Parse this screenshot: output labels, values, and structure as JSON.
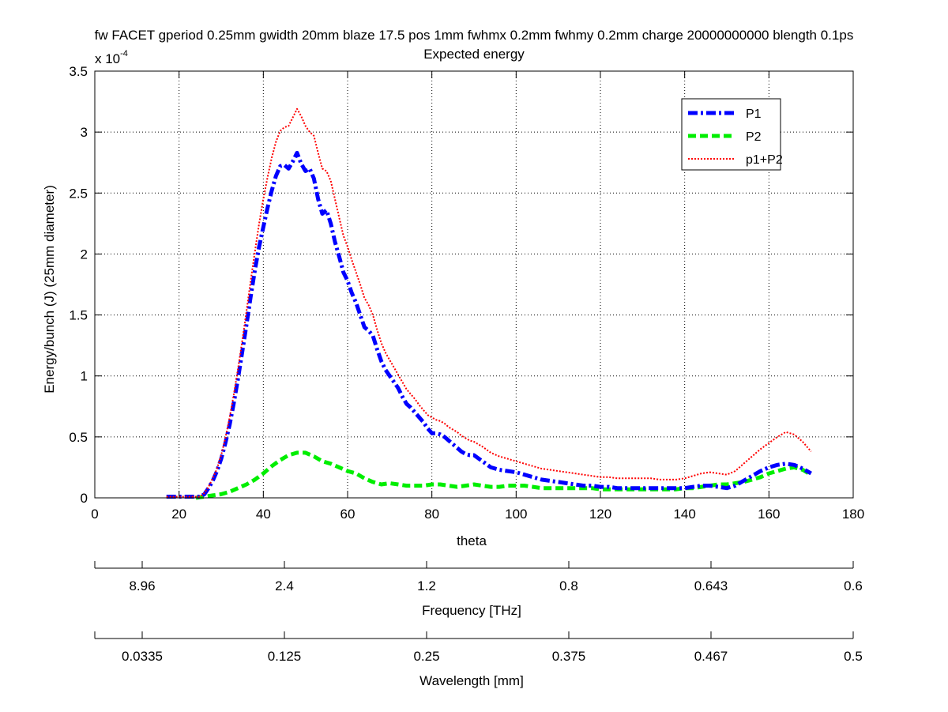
{
  "chart_data": {
    "type": "line",
    "title": "fw FACET gperiod 0.25mm gwidth 20mm blaze 17.5 pos 1mm fwhmx 0.2mm fwhmy 0.2mm charge 20000000000 blength 0.1ps",
    "subtitle": "Expected energy",
    "xlabel": "theta",
    "ylabel": "Energy/bunch (J)  (25mm diameter)",
    "y_exponent_base": "x 10",
    "y_exponent_power": "-4",
    "xlim": [
      0,
      180
    ],
    "ylim": [
      0,
      3.5
    ],
    "x_ticks": [
      0,
      20,
      40,
      60,
      80,
      100,
      120,
      140,
      160,
      180
    ],
    "y_ticks": [
      0,
      0.5,
      1,
      1.5,
      2,
      2.5,
      3,
      3.5
    ],
    "x_tick_labels": [
      "0",
      "20",
      "40",
      "60",
      "80",
      "100",
      "120",
      "140",
      "160",
      "180"
    ],
    "y_tick_labels": [
      "0",
      "0.5",
      "1",
      "1.5",
      "2",
      "2.5",
      "3",
      "3.5"
    ],
    "grid": true,
    "legend_position": "top-right",
    "series": [
      {
        "name": "P1",
        "color": "#0000ff",
        "style": "dashdot",
        "x": [
          17,
          20,
          22,
          24,
          25,
          26,
          27,
          28,
          29,
          30,
          31,
          32,
          33,
          34,
          35,
          36,
          37,
          38,
          39,
          40,
          41,
          42,
          43,
          44,
          45,
          46,
          47,
          48,
          49,
          50,
          51,
          52,
          53,
          54,
          55,
          56,
          57,
          58,
          59,
          60,
          61,
          62,
          63,
          64,
          65,
          66,
          67,
          68,
          69,
          70,
          71,
          72,
          73,
          74,
          75,
          76,
          77,
          78,
          79,
          80,
          81,
          82,
          83,
          84,
          85,
          86,
          87,
          88,
          89,
          90,
          92,
          94,
          96,
          98,
          100,
          102,
          104,
          106,
          108,
          110,
          112,
          114,
          116,
          118,
          120,
          122,
          124,
          126,
          128,
          130,
          132,
          134,
          136,
          138,
          140,
          142,
          144,
          146,
          148,
          150,
          152,
          154,
          156,
          158,
          160,
          162,
          164,
          166,
          168,
          170
        ],
        "y": [
          0.01,
          0.01,
          0.01,
          0.01,
          0.01,
          0.03,
          0.08,
          0.14,
          0.22,
          0.32,
          0.45,
          0.6,
          0.78,
          0.98,
          1.2,
          1.42,
          1.65,
          1.87,
          2.06,
          2.22,
          2.38,
          2.52,
          2.64,
          2.72,
          2.73,
          2.7,
          2.76,
          2.83,
          2.74,
          2.68,
          2.7,
          2.62,
          2.45,
          2.33,
          2.36,
          2.25,
          2.1,
          1.98,
          1.85,
          1.78,
          1.68,
          1.6,
          1.5,
          1.4,
          1.37,
          1.33,
          1.22,
          1.12,
          1.05,
          1.0,
          0.95,
          0.9,
          0.83,
          0.77,
          0.74,
          0.7,
          0.66,
          0.62,
          0.57,
          0.53,
          0.53,
          0.52,
          0.5,
          0.47,
          0.44,
          0.41,
          0.38,
          0.36,
          0.35,
          0.35,
          0.3,
          0.25,
          0.23,
          0.22,
          0.21,
          0.19,
          0.17,
          0.15,
          0.14,
          0.13,
          0.12,
          0.11,
          0.1,
          0.1,
          0.09,
          0.09,
          0.08,
          0.08,
          0.08,
          0.08,
          0.08,
          0.08,
          0.08,
          0.08,
          0.08,
          0.09,
          0.1,
          0.1,
          0.09,
          0.08,
          0.1,
          0.14,
          0.18,
          0.22,
          0.25,
          0.27,
          0.28,
          0.27,
          0.24,
          0.2
        ]
      },
      {
        "name": "P2",
        "color": "#00ee00",
        "style": "dashed",
        "x": [
          24,
          26,
          28,
          30,
          32,
          34,
          36,
          38,
          40,
          42,
          44,
          46,
          48,
          50,
          52,
          54,
          56,
          58,
          60,
          62,
          64,
          66,
          68,
          70,
          72,
          74,
          76,
          78,
          80,
          82,
          84,
          86,
          88,
          90,
          92,
          94,
          96,
          98,
          100,
          102,
          104,
          106,
          108,
          110,
          112,
          114,
          116,
          118,
          120,
          122,
          124,
          126,
          128,
          130,
          132,
          134,
          136,
          138,
          140,
          142,
          144,
          146,
          148,
          150,
          152,
          154,
          156,
          158,
          160,
          162,
          164,
          166,
          168,
          170
        ],
        "y": [
          0.0,
          0.01,
          0.02,
          0.03,
          0.05,
          0.08,
          0.11,
          0.15,
          0.2,
          0.26,
          0.31,
          0.35,
          0.37,
          0.37,
          0.34,
          0.3,
          0.28,
          0.25,
          0.22,
          0.2,
          0.16,
          0.13,
          0.11,
          0.12,
          0.11,
          0.1,
          0.1,
          0.1,
          0.11,
          0.11,
          0.1,
          0.09,
          0.1,
          0.11,
          0.1,
          0.09,
          0.09,
          0.1,
          0.1,
          0.1,
          0.09,
          0.08,
          0.08,
          0.08,
          0.08,
          0.08,
          0.08,
          0.08,
          0.07,
          0.07,
          0.07,
          0.07,
          0.07,
          0.07,
          0.07,
          0.07,
          0.07,
          0.07,
          0.08,
          0.08,
          0.09,
          0.1,
          0.11,
          0.11,
          0.12,
          0.13,
          0.15,
          0.17,
          0.2,
          0.22,
          0.24,
          0.25,
          0.23,
          0.19
        ]
      },
      {
        "name": "p1+P2",
        "color": "#ff0000",
        "style": "dotted",
        "x": [
          17,
          20,
          22,
          24,
          25,
          26,
          27,
          28,
          29,
          30,
          31,
          32,
          33,
          34,
          35,
          36,
          37,
          38,
          39,
          40,
          41,
          42,
          43,
          44,
          45,
          46,
          47,
          48,
          49,
          50,
          51,
          52,
          53,
          54,
          55,
          56,
          57,
          58,
          59,
          60,
          61,
          62,
          63,
          64,
          65,
          66,
          67,
          68,
          69,
          70,
          71,
          72,
          73,
          74,
          75,
          76,
          77,
          78,
          79,
          80,
          81,
          82,
          83,
          84,
          85,
          86,
          87,
          88,
          89,
          90,
          92,
          94,
          96,
          98,
          100,
          102,
          104,
          106,
          108,
          110,
          112,
          114,
          116,
          118,
          120,
          122,
          124,
          126,
          128,
          130,
          132,
          134,
          136,
          138,
          140,
          142,
          144,
          146,
          148,
          150,
          152,
          154,
          156,
          158,
          160,
          162,
          164,
          166,
          168,
          170
        ],
        "y": [
          0.01,
          0.01,
          0.01,
          0.01,
          0.01,
          0.04,
          0.09,
          0.16,
          0.24,
          0.35,
          0.49,
          0.66,
          0.85,
          1.06,
          1.29,
          1.53,
          1.78,
          2.02,
          2.25,
          2.45,
          2.63,
          2.79,
          2.92,
          3.01,
          3.04,
          3.05,
          3.12,
          3.19,
          3.13,
          3.05,
          3.0,
          2.97,
          2.83,
          2.7,
          2.68,
          2.6,
          2.45,
          2.3,
          2.15,
          2.06,
          1.95,
          1.85,
          1.75,
          1.64,
          1.58,
          1.5,
          1.38,
          1.27,
          1.19,
          1.13,
          1.07,
          1.01,
          0.95,
          0.89,
          0.85,
          0.81,
          0.76,
          0.72,
          0.68,
          0.66,
          0.64,
          0.63,
          0.61,
          0.58,
          0.56,
          0.54,
          0.51,
          0.49,
          0.47,
          0.46,
          0.42,
          0.37,
          0.34,
          0.32,
          0.3,
          0.28,
          0.26,
          0.24,
          0.23,
          0.22,
          0.21,
          0.2,
          0.19,
          0.18,
          0.17,
          0.17,
          0.16,
          0.16,
          0.16,
          0.16,
          0.16,
          0.15,
          0.15,
          0.15,
          0.16,
          0.18,
          0.2,
          0.21,
          0.2,
          0.19,
          0.22,
          0.28,
          0.34,
          0.4,
          0.45,
          0.5,
          0.54,
          0.52,
          0.46,
          0.38
        ]
      }
    ],
    "frequency_axis": {
      "label": "Frequency [THz]",
      "tick_labels": [
        "8.96",
        "2.4",
        "1.2",
        "0.8",
        "0.643",
        "0.6"
      ]
    },
    "wavelength_axis": {
      "label": "Wavelength [mm]",
      "tick_labels": [
        "0.0335",
        "0.125",
        "0.25",
        "0.375",
        "0.467",
        "0.5"
      ]
    }
  }
}
